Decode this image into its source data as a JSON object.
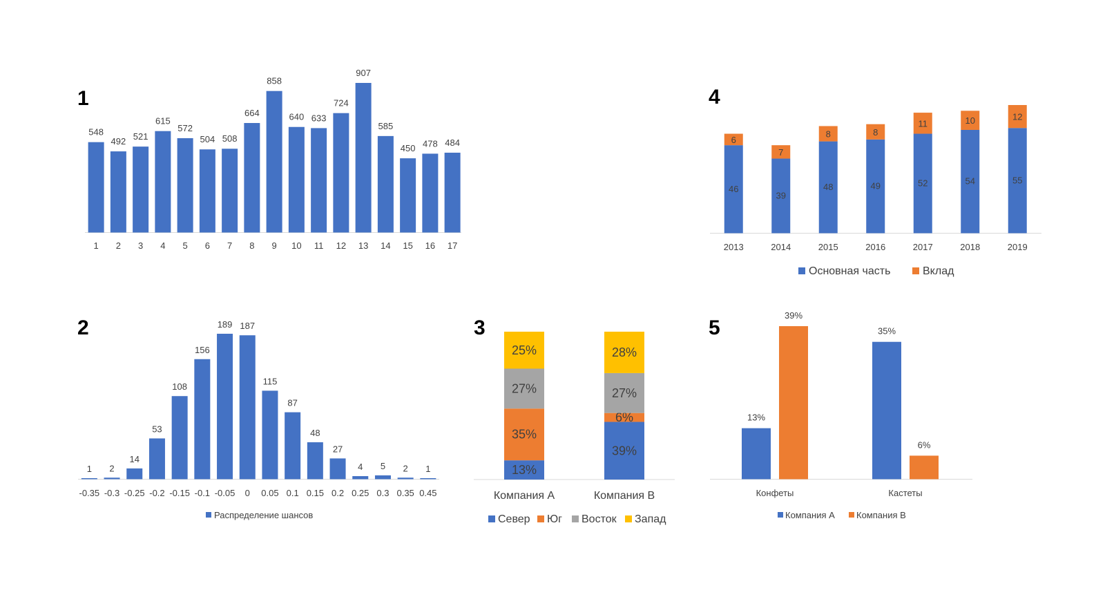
{
  "colors": {
    "blue": "#4472C4",
    "orange": "#ED7D31",
    "gray": "#A5A5A5",
    "yellow": "#FFC000",
    "axis": "#D9D9D9"
  },
  "chart_data": [
    {
      "id": "chart1",
      "panel_label": "1",
      "type": "bar",
      "categories": [
        "1",
        "2",
        "3",
        "4",
        "5",
        "6",
        "7",
        "8",
        "9",
        "10",
        "11",
        "12",
        "13",
        "14",
        "15",
        "16",
        "17"
      ],
      "values": [
        548,
        492,
        521,
        615,
        572,
        504,
        508,
        664,
        858,
        640,
        633,
        724,
        907,
        585,
        450,
        478,
        484
      ],
      "ylim": [
        0,
        907
      ],
      "data_labels": true,
      "grid": false
    },
    {
      "id": "chart2",
      "panel_label": "2",
      "type": "bar",
      "categories": [
        "-0.35",
        "-0.3",
        "-0.25",
        "-0.2",
        "-0.15",
        "-0.1",
        "-0.05",
        "0",
        "0.05",
        "0.1",
        "0.15",
        "0.2",
        "0.25",
        "0.3",
        "0.35",
        "0.45"
      ],
      "series": [
        {
          "name": "Распределение шансов",
          "values": [
            1,
            2,
            14,
            53,
            108,
            156,
            189,
            187,
            115,
            87,
            48,
            27,
            4,
            5,
            2,
            1
          ]
        }
      ],
      "ylim": [
        0,
        189
      ],
      "data_labels": true,
      "legend": "bottom",
      "grid": false
    },
    {
      "id": "chart3",
      "panel_label": "3",
      "type": "bar",
      "stacked": true,
      "percent": true,
      "categories": [
        "Компания А",
        "Компания B"
      ],
      "series": [
        {
          "name": "Север",
          "values": [
            13,
            39
          ],
          "labels": [
            "13%",
            "39%"
          ]
        },
        {
          "name": "Юг",
          "values": [
            35,
            6
          ],
          "labels": [
            "35%",
            "6%"
          ]
        },
        {
          "name": "Восток",
          "values": [
            27,
            27
          ],
          "labels": [
            "27%",
            "27%"
          ]
        },
        {
          "name": "Запад",
          "values": [
            25,
            28
          ],
          "labels": [
            "25%",
            "28%"
          ]
        }
      ],
      "legend": "bottom",
      "grid": false
    },
    {
      "id": "chart4",
      "panel_label": "4",
      "type": "bar",
      "stacked": true,
      "categories": [
        "2013",
        "2014",
        "2015",
        "2016",
        "2017",
        "2018",
        "2019"
      ],
      "series": [
        {
          "name": "Основная часть",
          "values": [
            46,
            39,
            48,
            49,
            52,
            54,
            55
          ]
        },
        {
          "name": "Вклад",
          "values": [
            6,
            7,
            8,
            8,
            11,
            10,
            12
          ]
        }
      ],
      "ylim": [
        0,
        67
      ],
      "data_labels": true,
      "legend": "bottom",
      "grid": false
    },
    {
      "id": "chart5",
      "panel_label": "5",
      "type": "bar",
      "categories": [
        "Конфеты",
        "Кастеты"
      ],
      "series": [
        {
          "name": "Компания А",
          "values": [
            13,
            35
          ],
          "labels": [
            "13%",
            "35%"
          ]
        },
        {
          "name": "Компания В",
          "values": [
            39,
            6
          ],
          "labels": [
            "39%",
            "6%"
          ]
        }
      ],
      "ylim": [
        0,
        39
      ],
      "data_labels": true,
      "legend": "bottom",
      "grid": false
    }
  ]
}
